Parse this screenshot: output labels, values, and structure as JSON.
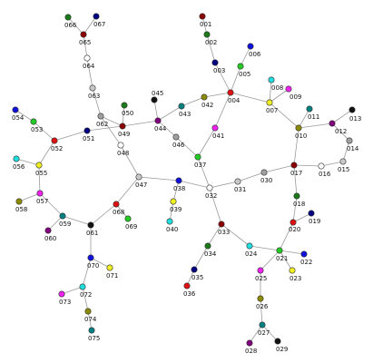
{
  "graph": {
    "nodes": [
      {
        "id": "001",
        "color": "#8b0000"
      },
      {
        "id": "002",
        "color": "#1a7a1a"
      },
      {
        "id": "003",
        "color": "#000080"
      },
      {
        "id": "004",
        "color": "#dd1111"
      },
      {
        "id": "005",
        "color": "#22cc22"
      },
      {
        "id": "006",
        "color": "#1111dd"
      },
      {
        "id": "007",
        "color": "#eeee22"
      },
      {
        "id": "008",
        "color": "#22dddd"
      },
      {
        "id": "009",
        "color": "#ee22ee"
      },
      {
        "id": "010",
        "color": "#8b8b00"
      },
      {
        "id": "011",
        "color": "#008080"
      },
      {
        "id": "012",
        "color": "#800080"
      },
      {
        "id": "013",
        "color": "#111111"
      },
      {
        "id": "014",
        "color": "#a0a0a0"
      },
      {
        "id": "015",
        "color": "#c8c8c8"
      },
      {
        "id": "016",
        "color": "#ffffff"
      },
      {
        "id": "017",
        "color": "#8b0000"
      },
      {
        "id": "018",
        "color": "#1a7a1a"
      },
      {
        "id": "019",
        "color": "#000080"
      },
      {
        "id": "020",
        "color": "#dd1111"
      },
      {
        "id": "021",
        "color": "#22cc22"
      },
      {
        "id": "022",
        "color": "#1111dd"
      },
      {
        "id": "023",
        "color": "#eeee22"
      },
      {
        "id": "024",
        "color": "#22dddd"
      },
      {
        "id": "025",
        "color": "#ee22ee"
      },
      {
        "id": "026",
        "color": "#8b8b00"
      },
      {
        "id": "027",
        "color": "#008080"
      },
      {
        "id": "028",
        "color": "#800080"
      },
      {
        "id": "029",
        "color": "#111111"
      },
      {
        "id": "030",
        "color": "#a0a0a0"
      },
      {
        "id": "031",
        "color": "#c8c8c8"
      },
      {
        "id": "032",
        "color": "#ffffff"
      },
      {
        "id": "033",
        "color": "#8b0000"
      },
      {
        "id": "034",
        "color": "#1a7a1a"
      },
      {
        "id": "035",
        "color": "#000080"
      },
      {
        "id": "036",
        "color": "#dd1111"
      },
      {
        "id": "037",
        "color": "#22cc22"
      },
      {
        "id": "038",
        "color": "#1111dd"
      },
      {
        "id": "039",
        "color": "#eeee22"
      },
      {
        "id": "040",
        "color": "#22dddd"
      },
      {
        "id": "041",
        "color": "#ee22ee"
      },
      {
        "id": "042",
        "color": "#8b8b00"
      },
      {
        "id": "043",
        "color": "#008080"
      },
      {
        "id": "044",
        "color": "#800080"
      },
      {
        "id": "045",
        "color": "#111111"
      },
      {
        "id": "046",
        "color": "#a0a0a0"
      },
      {
        "id": "047",
        "color": "#c8c8c8"
      },
      {
        "id": "048",
        "color": "#ffffff"
      },
      {
        "id": "049",
        "color": "#8b0000"
      },
      {
        "id": "050",
        "color": "#1a7a1a"
      },
      {
        "id": "051",
        "color": "#000080"
      },
      {
        "id": "052",
        "color": "#dd1111"
      },
      {
        "id": "053",
        "color": "#22cc22"
      },
      {
        "id": "054",
        "color": "#1111dd"
      },
      {
        "id": "055",
        "color": "#eeee22"
      },
      {
        "id": "056",
        "color": "#22dddd"
      },
      {
        "id": "057",
        "color": "#ee22ee"
      },
      {
        "id": "058",
        "color": "#8b8b00"
      },
      {
        "id": "059",
        "color": "#008080"
      },
      {
        "id": "060",
        "color": "#800080"
      },
      {
        "id": "061",
        "color": "#111111"
      },
      {
        "id": "062",
        "color": "#a0a0a0"
      },
      {
        "id": "063",
        "color": "#c8c8c8"
      },
      {
        "id": "064",
        "color": "#ffffff"
      },
      {
        "id": "065",
        "color": "#8b0000"
      },
      {
        "id": "066",
        "color": "#1a7a1a"
      },
      {
        "id": "067",
        "color": "#000080"
      },
      {
        "id": "068",
        "color": "#dd1111"
      },
      {
        "id": "069",
        "color": "#22cc22"
      },
      {
        "id": "070",
        "color": "#1111dd"
      },
      {
        "id": "071",
        "color": "#eeee22"
      },
      {
        "id": "072",
        "color": "#22dddd"
      },
      {
        "id": "073",
        "color": "#ee22ee"
      },
      {
        "id": "074",
        "color": "#8b8b00"
      },
      {
        "id": "075",
        "color": "#008080"
      }
    ],
    "edges": [
      [
        "001",
        "002"
      ],
      [
        "002",
        "003"
      ],
      [
        "003",
        "004"
      ],
      [
        "005",
        "004"
      ],
      [
        "005",
        "006"
      ],
      [
        "004",
        "042"
      ],
      [
        "004",
        "041"
      ],
      [
        "004",
        "007"
      ],
      [
        "007",
        "008"
      ],
      [
        "007",
        "009"
      ],
      [
        "007",
        "010"
      ],
      [
        "010",
        "011"
      ],
      [
        "010",
        "012"
      ],
      [
        "012",
        "013"
      ],
      [
        "012",
        "014"
      ],
      [
        "014",
        "015"
      ],
      [
        "015",
        "016"
      ],
      [
        "016",
        "017"
      ],
      [
        "010",
        "017"
      ],
      [
        "017",
        "018"
      ],
      [
        "018",
        "020"
      ],
      [
        "017",
        "030"
      ],
      [
        "030",
        "031"
      ],
      [
        "031",
        "032"
      ],
      [
        "032",
        "038"
      ],
      [
        "032",
        "033"
      ],
      [
        "032",
        "037"
      ],
      [
        "033",
        "034"
      ],
      [
        "034",
        "035"
      ],
      [
        "035",
        "036"
      ],
      [
        "033",
        "024"
      ],
      [
        "024",
        "021"
      ],
      [
        "021",
        "020"
      ],
      [
        "020",
        "019"
      ],
      [
        "021",
        "022"
      ],
      [
        "021",
        "023"
      ],
      [
        "021",
        "025"
      ],
      [
        "025",
        "026"
      ],
      [
        "026",
        "027"
      ],
      [
        "027",
        "028"
      ],
      [
        "027",
        "029"
      ],
      [
        "037",
        "041"
      ],
      [
        "037",
        "046"
      ],
      [
        "046",
        "044"
      ],
      [
        "044",
        "045"
      ],
      [
        "044",
        "043"
      ],
      [
        "043",
        "042"
      ],
      [
        "044",
        "049"
      ],
      [
        "049",
        "050"
      ],
      [
        "049",
        "062"
      ],
      [
        "049",
        "051"
      ],
      [
        "062",
        "063"
      ],
      [
        "063",
        "064"
      ],
      [
        "064",
        "065"
      ],
      [
        "065",
        "066"
      ],
      [
        "065",
        "067"
      ],
      [
        "062",
        "048"
      ],
      [
        "048",
        "047"
      ],
      [
        "047",
        "038"
      ],
      [
        "047",
        "068"
      ],
      [
        "068",
        "069"
      ],
      [
        "068",
        "061"
      ],
      [
        "038",
        "039"
      ],
      [
        "039",
        "040"
      ],
      [
        "051",
        "052"
      ],
      [
        "052",
        "053"
      ],
      [
        "053",
        "054"
      ],
      [
        "052",
        "055"
      ],
      [
        "055",
        "056"
      ],
      [
        "055",
        "057"
      ],
      [
        "057",
        "058"
      ],
      [
        "057",
        "059"
      ],
      [
        "059",
        "060"
      ],
      [
        "059",
        "061"
      ],
      [
        "061",
        "070"
      ],
      [
        "070",
        "071"
      ],
      [
        "070",
        "072"
      ],
      [
        "072",
        "073"
      ],
      [
        "072",
        "074"
      ],
      [
        "074",
        "075"
      ]
    ]
  }
}
